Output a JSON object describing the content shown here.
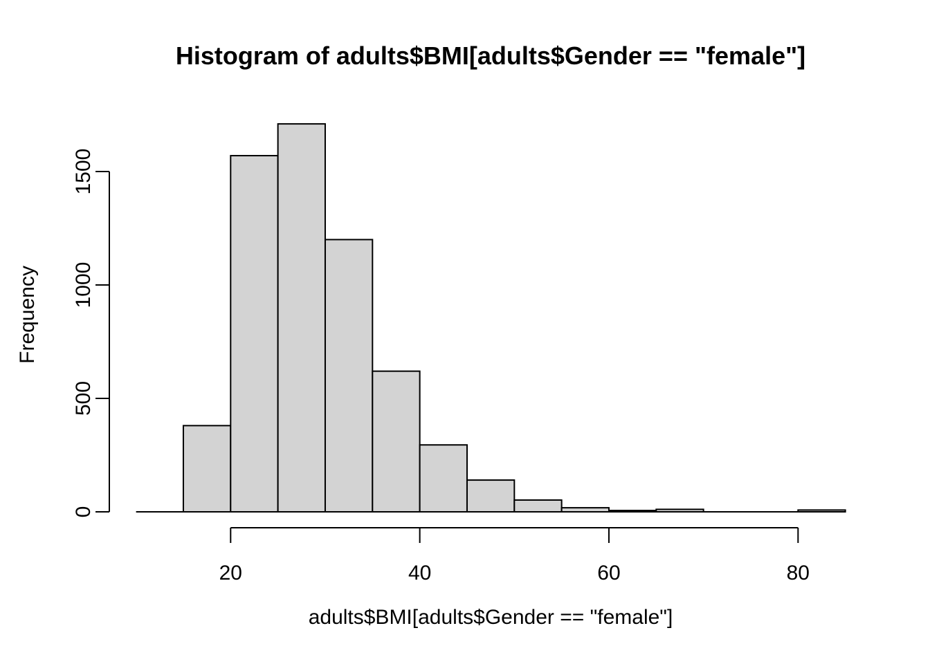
{
  "title": "Histogram of adults$BMI[adults$Gender == \"female\"]",
  "chart_data": {
    "type": "bar",
    "subtype": "histogram",
    "title": "Histogram of adults$BMI[adults$Gender == \"female\"]",
    "xlabel": "adults$BMI[adults$Gender == \"female\"]",
    "ylabel": "Frequency",
    "breaks": [
      10,
      15,
      20,
      25,
      30,
      35,
      40,
      45,
      50,
      55,
      60,
      65,
      70,
      75,
      80,
      85
    ],
    "counts": [
      0,
      380,
      1570,
      1710,
      1200,
      620,
      295,
      140,
      52,
      18,
      6,
      11,
      0,
      0,
      8
    ],
    "categories": [
      "10-15",
      "15-20",
      "20-25",
      "25-30",
      "30-35",
      "35-40",
      "40-45",
      "45-50",
      "50-55",
      "55-60",
      "60-65",
      "65-70",
      "70-75",
      "75-80",
      "80-85"
    ],
    "x_ticks": [
      20,
      40,
      60,
      80
    ],
    "y_ticks": [
      0,
      500,
      1000,
      1500
    ],
    "xlim": [
      10,
      85
    ],
    "ylim": [
      0,
      1710
    ],
    "grid": false,
    "legend": "none",
    "colors": {
      "bar_fill": "#d3d3d3",
      "bar_stroke": "#000000",
      "axis": "#000000",
      "text": "#000000",
      "background": "#ffffff"
    }
  }
}
